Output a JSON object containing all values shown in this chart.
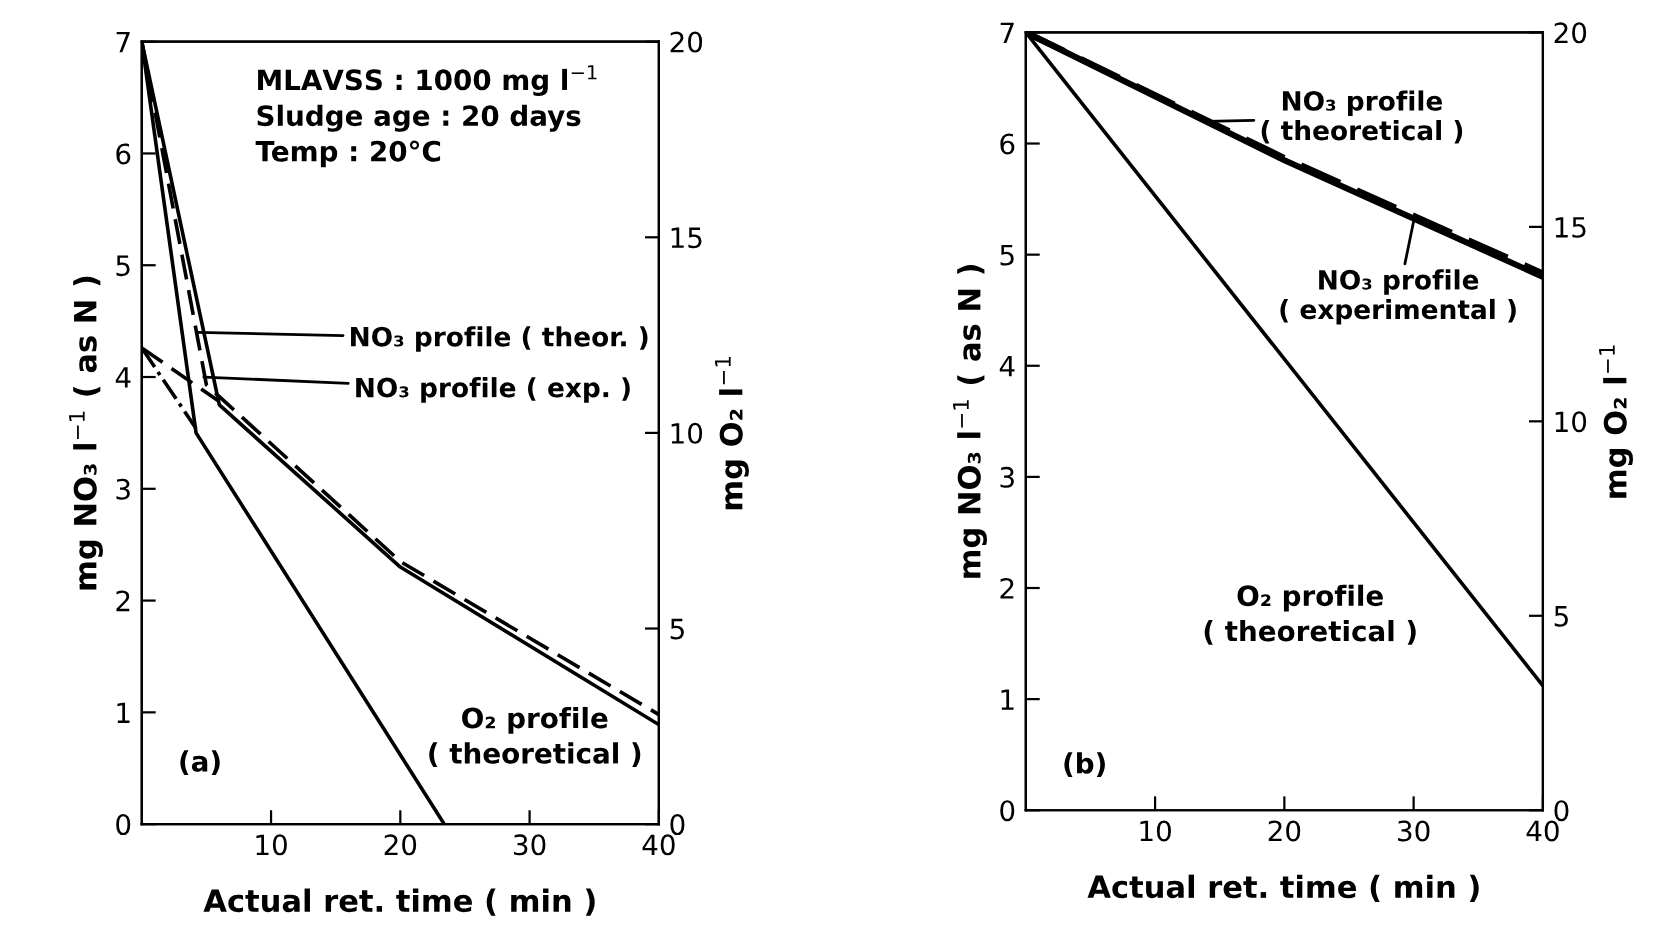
{
  "chart_data": [
    {
      "type": "line",
      "xlabel": "Actual ret. time ( min )",
      "ylabel": "mg NO₃ l$^{−1}$ ( as N )",
      "y2label": "mg O₂ l$^{−1}$",
      "xlim": [
        0,
        40
      ],
      "xticks": [
        10,
        20,
        30,
        40
      ],
      "ylim": [
        0,
        7
      ],
      "yticks": [
        0,
        1,
        2,
        3,
        4,
        5,
        6,
        7
      ],
      "y2lim": [
        0,
        20
      ],
      "y2ticks": [
        0,
        5,
        10,
        15,
        20
      ],
      "grid": false,
      "legend": false,
      "marker": "none",
      "series": [
        {
          "color": "#000000",
          "line_style": "solid",
          "x": [
            0,
            6,
            20,
            40
          ],
          "values": [
            7,
            3.75,
            2.3,
            0.89
          ]
        },
        {
          "color": "#000000",
          "line_style": "dashed",
          "x": [
            0,
            5,
            20,
            40
          ],
          "values": [
            7,
            3.93,
            2.35,
            0.98
          ]
        },
        {
          "color": "#000000",
          "line_style": "dashed",
          "x": [
            0,
            6
          ],
          "values": [
            4.26,
            3.78
          ]
        },
        {
          "color": "#000000",
          "line_style": "dotted",
          "x": [
            0,
            4.2
          ],
          "values": [
            4.26,
            3.54
          ]
        },
        {
          "color": "#000000",
          "line_style": "solid",
          "axis": "y2",
          "x": [
            0,
            4.2,
            23.4
          ],
          "values": [
            20,
            10,
            0
          ]
        }
      ],
      "annotations": [
        {
          "text": "NO₃ profile ( theor. )",
          "x": 4.3,
          "y": 4.4
        },
        {
          "text": "NO₃ profile ( exp. )",
          "x": 4.8,
          "y": 4.0
        },
        "O₂ profile\n( theoretical )",
        "MLAVSS : 1000 mg l$^{−1}$\nSludge age : 20 days\nTemp : 20°C",
        "(a)"
      ]
    },
    {
      "type": "line",
      "xlabel": "Actual ret. time ( min )",
      "ylabel": "mg NO₃ l$^{−1}$ ( as N )",
      "y2label": "mg O₂ l$^{−1}$",
      "xlim": [
        0,
        40
      ],
      "xticks": [
        10,
        20,
        30,
        40
      ],
      "ylim": [
        0,
        7
      ],
      "yticks": [
        0,
        1,
        2,
        3,
        4,
        5,
        6,
        7
      ],
      "y2lim": [
        0,
        20
      ],
      "y2ticks": [
        0,
        5,
        10,
        15,
        20
      ],
      "grid": false,
      "legend": false,
      "marker": "none",
      "series": [
        {
          "color": "#000000",
          "line_style": "solid",
          "x": [
            0,
            20,
            40
          ],
          "values": [
            7,
            5.85,
            4.8
          ]
        },
        {
          "color": "#000000",
          "line_style": "dashed",
          "x": [
            0,
            20,
            40
          ],
          "values": [
            7,
            5.87,
            4.83
          ]
        },
        {
          "color": "#000000",
          "line_style": "solid",
          "axis": "y2",
          "x": [
            0,
            40
          ],
          "values": [
            20,
            3.2
          ]
        }
      ],
      "annotations": [
        {
          "text": "NO₃ profile\n( theoretical )",
          "x": 14,
          "y": 6.2
        },
        {
          "text": "NO₃ profile\n( experimental )",
          "x": 30,
          "y": 5.3
        },
        "O₂ profile\n( theoretical )",
        "(b)"
      ]
    }
  ]
}
